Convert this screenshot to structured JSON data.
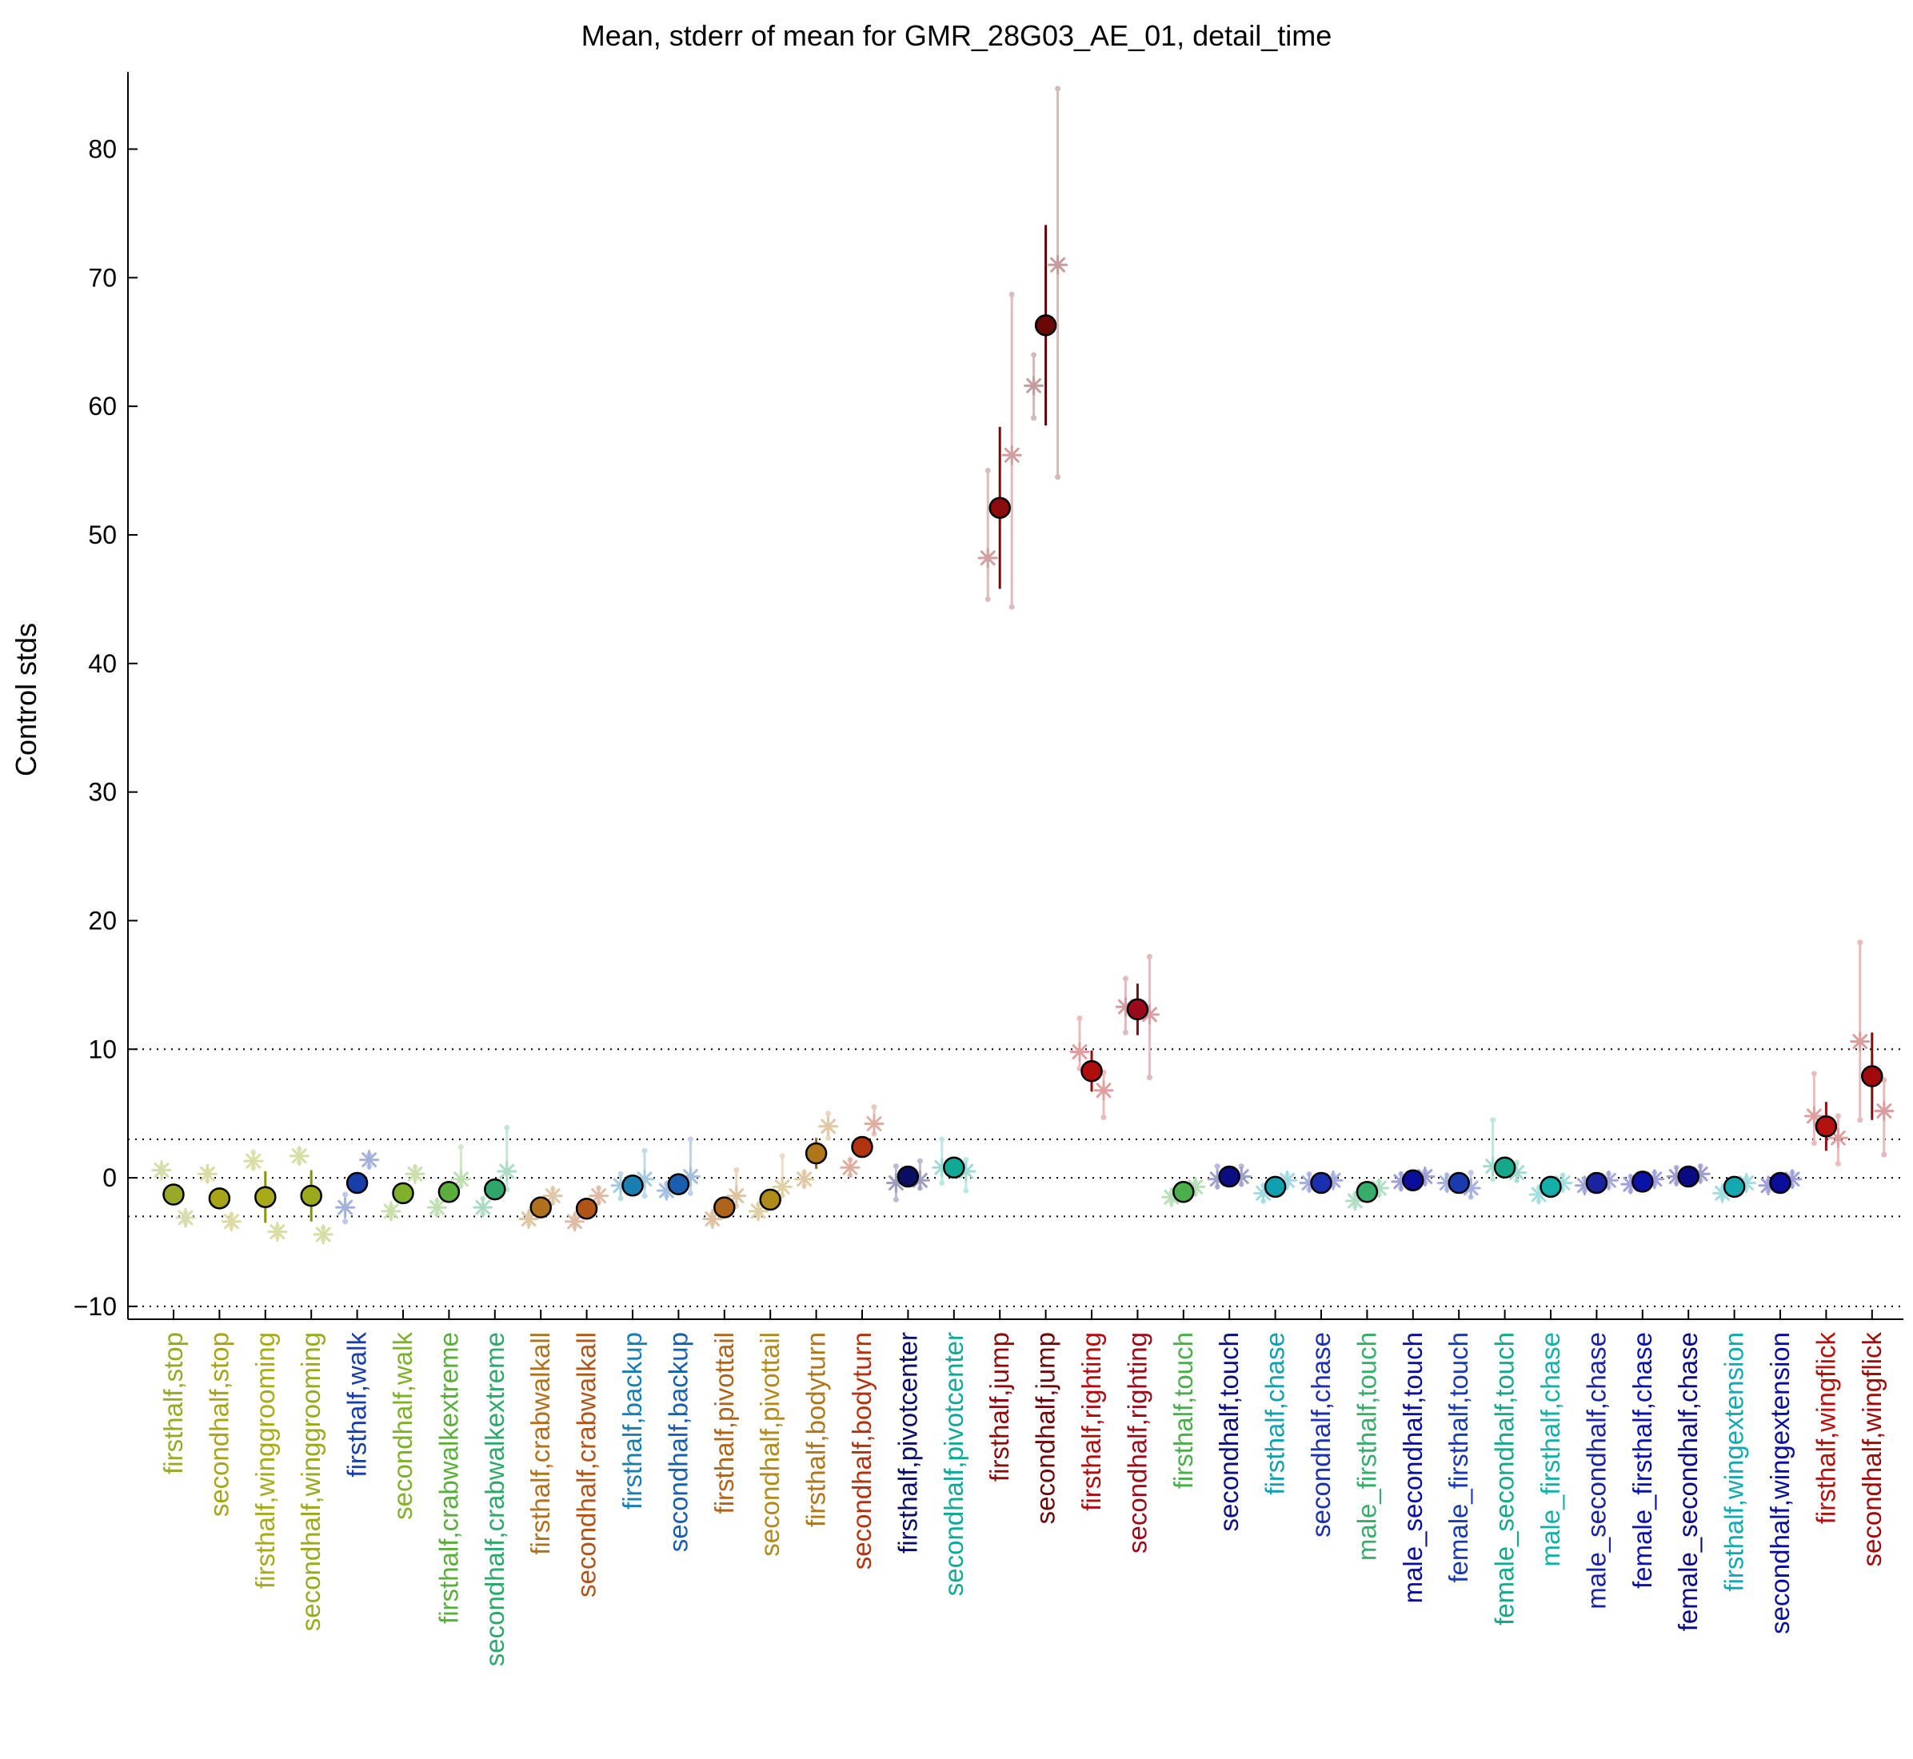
{
  "chart_data": {
    "type": "scatter",
    "title": "Mean, stderr of mean for GMR_28G03_AE_01, detail_time",
    "ylabel": "Control stds",
    "xlabel": "",
    "ylim": [
      -11,
      86
    ],
    "yticks": [
      -10,
      0,
      10,
      20,
      30,
      40,
      50,
      60,
      70,
      80
    ],
    "ytick_labels": [
      "−10",
      "0",
      "10",
      "20",
      "30",
      "40",
      "50",
      "60",
      "70",
      "80"
    ],
    "reference_lines": [
      -10,
      -3,
      0,
      3,
      10
    ],
    "grid": false,
    "legend": "none",
    "categories": [
      "firsthalf,stop",
      "secondhalf,stop",
      "firsthalf,winggrooming",
      "secondhalf,winggrooming",
      "firsthalf,walk",
      "secondhalf,walk",
      "firsthalf,crabwalkextreme",
      "secondhalf,crabwalkextreme",
      "firsthalf,crabwalkall",
      "secondhalf,crabwalkall",
      "firsthalf,backup",
      "secondhalf,backup",
      "firsthalf,pivottail",
      "secondhalf,pivottail",
      "firsthalf,bodyturn",
      "secondhalf,bodyturn",
      "firsthalf,pivotcenter",
      "secondhalf,pivotcenter",
      "firsthalf,jump",
      "secondhalf,jump",
      "firsthalf,righting",
      "secondhalf,righting",
      "firsthalf,touch",
      "secondhalf,touch",
      "firsthalf,chase",
      "secondhalf,chase",
      "male_firsthalf,touch",
      "male_secondhalf,touch",
      "female_firsthalf,touch",
      "female_secondhalf,touch",
      "male_firsthalf,chase",
      "male_secondhalf,chase",
      "female_firsthalf,chase",
      "female_secondhalf,chase",
      "firsthalf,wingextension",
      "secondhalf,wingextension",
      "firsthalf,wingflick",
      "secondhalf,wingflick"
    ],
    "colors": [
      "#9aa82a",
      "#a8a418",
      "#a8aa1a",
      "#9aaa1c",
      "#1a3ea8",
      "#7eb02a",
      "#5aae3c",
      "#2ea86a",
      "#b0701c",
      "#b05418",
      "#1a7eb0",
      "#1a5eb0",
      "#b0641a",
      "#b08a1a",
      "#b0761a",
      "#b0340e",
      "#0a0e62",
      "#12a896",
      "#8a0c0c",
      "#6a0808",
      "#b00e0e",
      "#9a0a1a",
      "#4aae4a",
      "#0a0e82",
      "#12a0b0",
      "#1a30b0",
      "#36ae6a",
      "#0a0e9a",
      "#1a3ab0",
      "#16a88a",
      "#14b0a8",
      "#1a24a0",
      "#0a12a8",
      "#0a0a82",
      "#14a8b0",
      "#0a0e9a",
      "#b4120e",
      "#a00a0a"
    ],
    "mean": [
      -1.3,
      -1.6,
      -1.5,
      -1.4,
      -0.4,
      -1.2,
      -1.1,
      -0.9,
      -2.3,
      -2.4,
      -0.6,
      -0.5,
      -2.3,
      -1.7,
      1.9,
      2.4,
      0.1,
      0.8,
      52.1,
      66.3,
      8.3,
      13.1,
      -1.1,
      0.1,
      -0.7,
      -0.4,
      -1.1,
      -0.2,
      -0.4,
      0.8,
      -0.7,
      -0.4,
      -0.3,
      0.1,
      -0.7,
      -0.4,
      4.0,
      7.9
    ],
    "sem": [
      0.3,
      0.4,
      2.0,
      2.0,
      0.5,
      0.4,
      0.7,
      0.7,
      0.3,
      0.3,
      0.5,
      0.5,
      0.3,
      0.4,
      1.2,
      0.5,
      0.5,
      0.6,
      6.3,
      7.8,
      1.6,
      2.0,
      0.3,
      0.4,
      0.4,
      0.3,
      0.4,
      0.3,
      0.4,
      0.5,
      0.3,
      0.3,
      0.3,
      0.3,
      0.3,
      0.3,
      1.9,
      3.4
    ],
    "experiment_means": [
      [
        0.6,
        -3.1
      ],
      [
        0.3,
        -3.4
      ],
      [
        1.3,
        -4.2
      ],
      [
        1.7,
        -4.4
      ],
      [
        -2.3,
        1.4
      ],
      [
        -2.6,
        0.3
      ],
      [
        -2.3,
        -0.1
      ],
      [
        -2.3,
        0.5
      ],
      [
        -3.2,
        -1.4
      ],
      [
        -3.4,
        -1.4
      ],
      [
        -0.6,
        -0.1
      ],
      [
        -1.0,
        0.1
      ],
      [
        -3.2,
        -1.4
      ],
      [
        -2.6,
        -0.7
      ],
      [
        -0.1,
        4.0
      ],
      [
        0.8,
        4.2
      ],
      [
        -0.4,
        -0.2
      ],
      [
        0.8,
        0.5
      ],
      [
        48.2,
        56.2
      ],
      [
        61.6,
        71.0
      ],
      [
        9.8,
        6.8
      ],
      [
        13.3,
        12.7
      ],
      [
        -1.5,
        -0.7
      ],
      [
        -0.1,
        0.1
      ],
      [
        -1.2,
        -0.2
      ],
      [
        -0.4,
        -0.2
      ],
      [
        -1.8,
        -0.8
      ],
      [
        -0.3,
        0.1
      ],
      [
        -0.4,
        -0.8
      ],
      [
        0.9,
        0.4
      ],
      [
        -1.3,
        -0.4
      ],
      [
        -0.6,
        -0.2
      ],
      [
        -0.5,
        -0.1
      ],
      [
        0.1,
        0.3
      ],
      [
        -1.2,
        -0.4
      ],
      [
        -0.6,
        -0.1
      ],
      [
        4.8,
        3.1
      ],
      [
        10.6,
        5.2
      ]
    ],
    "fly_ranges": [
      [
        [
          0.3,
          0.9
        ],
        [
          -3.5,
          -2.7
        ]
      ],
      [
        [
          -0.2,
          0.6
        ],
        [
          -3.8,
          -2.9
        ]
      ],
      [
        [
          0.8,
          2.0
        ],
        [
          -4.6,
          -3.8
        ]
      ],
      [
        [
          1.2,
          2.2
        ],
        [
          -4.8,
          -3.9
        ]
      ],
      [
        [
          -3.4,
          -1.3
        ],
        [
          0.9,
          1.8
        ]
      ],
      [
        [
          -3.0,
          -2.2
        ],
        [
          -0.1,
          0.8
        ]
      ],
      [
        [
          -2.8,
          -1.8
        ],
        [
          -0.6,
          2.4
        ]
      ],
      [
        [
          -2.8,
          -1.6
        ],
        [
          -0.9,
          3.9
        ]
      ],
      [
        [
          -3.6,
          -2.8
        ],
        [
          -1.9,
          -0.9
        ]
      ],
      [
        [
          -3.8,
          -3.0
        ],
        [
          -1.9,
          -0.8
        ]
      ],
      [
        [
          -1.6,
          0.3
        ],
        [
          -1.4,
          2.1
        ]
      ],
      [
        [
          -1.4,
          -0.5
        ],
        [
          -1.2,
          3.0
        ]
      ],
      [
        [
          -3.6,
          -2.8
        ],
        [
          -2.2,
          0.6
        ]
      ],
      [
        [
          -3.0,
          -2.1
        ],
        [
          -1.4,
          1.7
        ]
      ],
      [
        [
          -0.6,
          0.4
        ],
        [
          3.1,
          5.0
        ]
      ],
      [
        [
          0.2,
          1.4
        ],
        [
          3.4,
          5.5
        ]
      ],
      [
        [
          -1.7,
          0.9
        ],
        [
          -0.8,
          1.3
        ]
      ],
      [
        [
          -0.4,
          3.0
        ],
        [
          -1.0,
          1.4
        ]
      ],
      [
        [
          45.0,
          55.0
        ],
        [
          44.4,
          68.7
        ]
      ],
      [
        [
          59.1,
          64.0
        ],
        [
          54.5,
          84.7
        ]
      ],
      [
        [
          8.5,
          12.4
        ],
        [
          4.7,
          8.2
        ]
      ],
      [
        [
          11.3,
          15.5
        ],
        [
          7.8,
          17.2
        ]
      ],
      [
        [
          -1.9,
          -1.1
        ],
        [
          -1.2,
          -0.3
        ]
      ],
      [
        [
          -0.7,
          0.9
        ],
        [
          -0.5,
          0.9
        ]
      ],
      [
        [
          -1.8,
          -0.6
        ],
        [
          -0.6,
          0.2
        ]
      ],
      [
        [
          -0.9,
          0.3
        ],
        [
          -0.6,
          0.2
        ]
      ],
      [
        [
          -2.2,
          -1.3
        ],
        [
          -1.3,
          -0.3
        ]
      ],
      [
        [
          -0.8,
          0.3
        ],
        [
          -0.4,
          0.5
        ]
      ],
      [
        [
          -0.9,
          0.2
        ],
        [
          -1.5,
          0.4
        ]
      ],
      [
        [
          -0.1,
          4.5
        ],
        [
          -0.2,
          1.2
        ]
      ],
      [
        [
          -1.8,
          -0.8
        ],
        [
          -0.9,
          0.2
        ]
      ],
      [
        [
          -1.0,
          -0.1
        ],
        [
          -0.7,
          0.3
        ]
      ],
      [
        [
          -1.0,
          0.1
        ],
        [
          -0.5,
          0.4
        ]
      ],
      [
        [
          -0.4,
          0.8
        ],
        [
          -0.2,
          0.9
        ]
      ],
      [
        [
          -1.6,
          -0.8
        ],
        [
          -0.8,
          0.0
        ]
      ],
      [
        [
          -1.0,
          -0.2
        ],
        [
          -0.6,
          0.4
        ]
      ],
      [
        [
          2.7,
          8.1
        ],
        [
          1.1,
          4.8
        ]
      ],
      [
        [
          4.5,
          18.3
        ],
        [
          1.8,
          7.6
        ]
      ]
    ]
  }
}
